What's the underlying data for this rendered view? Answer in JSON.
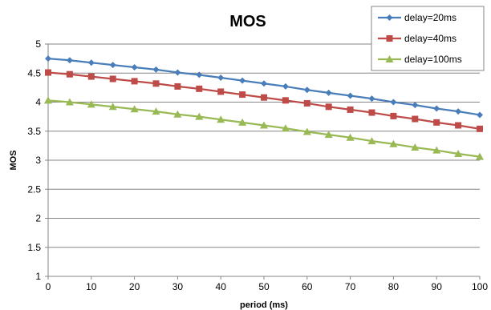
{
  "chart_data": {
    "type": "line",
    "title": "MOS",
    "xlabel": "period (ms)",
    "ylabel": "MOS",
    "xlim": [
      0,
      100
    ],
    "ylim": [
      1,
      5
    ],
    "x_ticks": [
      "0",
      "10",
      "20",
      "30",
      "40",
      "50",
      "60",
      "70",
      "80",
      "90",
      "100"
    ],
    "y_ticks": [
      "1",
      "1.5",
      "2",
      "2.5",
      "3",
      "3.5",
      "4",
      "4.5",
      "5"
    ],
    "grid": "horizontal",
    "legend_position": "top-right",
    "x": [
      0,
      5,
      10,
      15,
      20,
      25,
      30,
      35,
      40,
      45,
      50,
      55,
      60,
      65,
      70,
      75,
      80,
      85,
      90,
      95,
      100
    ],
    "series": [
      {
        "name": "delay=20ms",
        "color": "#4a7ebb",
        "marker": "diamond",
        "values": [
          4.75,
          4.72,
          4.68,
          4.64,
          4.6,
          4.56,
          4.51,
          4.47,
          4.42,
          4.37,
          4.32,
          4.27,
          4.21,
          4.16,
          4.11,
          4.06,
          4.0,
          3.95,
          3.89,
          3.84,
          3.78
        ]
      },
      {
        "name": "delay=40ms",
        "color": "#be4b48",
        "marker": "square",
        "values": [
          4.51,
          4.48,
          4.44,
          4.4,
          4.36,
          4.32,
          4.27,
          4.23,
          4.18,
          4.13,
          4.08,
          4.03,
          3.98,
          3.92,
          3.87,
          3.82,
          3.76,
          3.71,
          3.65,
          3.6,
          3.54
        ]
      },
      {
        "name": "delay=100ms",
        "color": "#98b954",
        "marker": "triangle",
        "values": [
          4.03,
          4.0,
          3.96,
          3.92,
          3.88,
          3.84,
          3.79,
          3.75,
          3.7,
          3.65,
          3.6,
          3.55,
          3.49,
          3.44,
          3.39,
          3.33,
          3.28,
          3.22,
          3.17,
          3.11,
          3.06
        ]
      }
    ]
  }
}
